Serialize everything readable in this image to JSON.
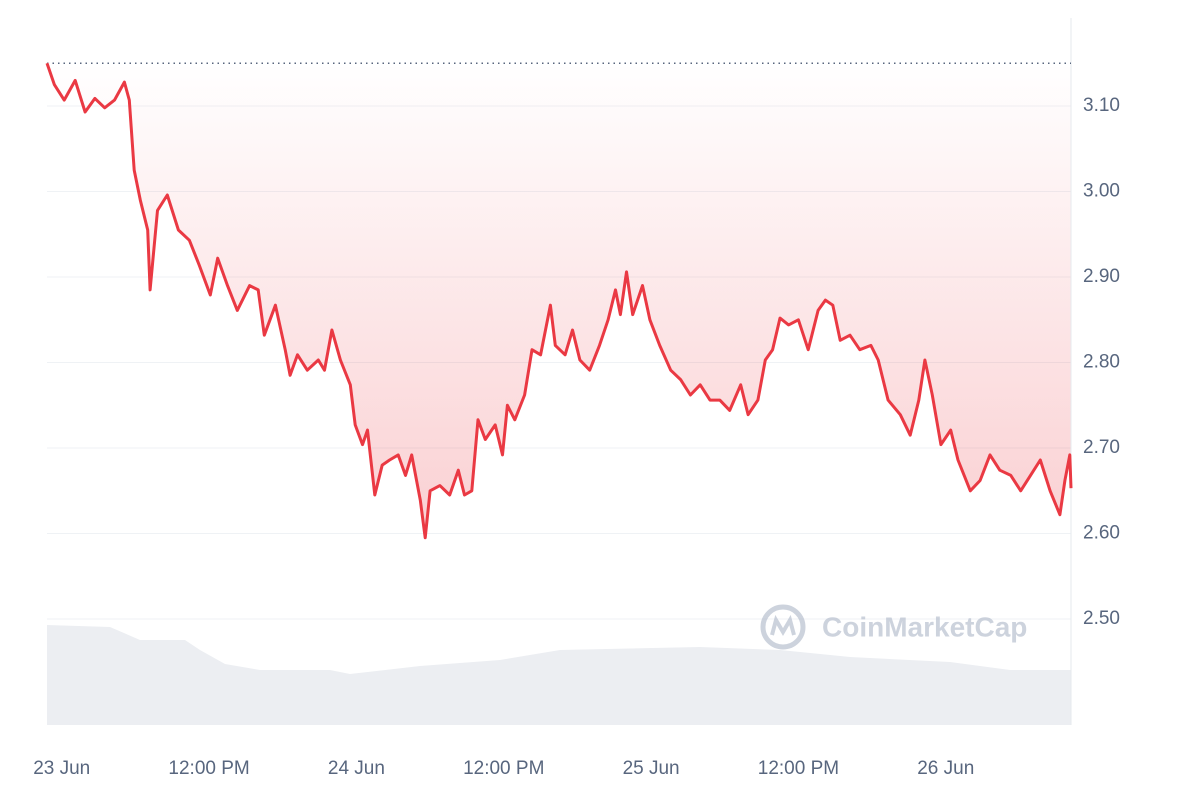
{
  "chart_data": {
    "type": "line",
    "watermark": "CoinMarketCap",
    "x": [
      -1.2,
      -0.6,
      0.2,
      1.1,
      1.9,
      2.7,
      3.5,
      4.3,
      5.1,
      5.5,
      5.9,
      6.4,
      7.0,
      7.2,
      7.8,
      8.6,
      9.5,
      10.4,
      11.2,
      12.1,
      12.7,
      13.5,
      14.3,
      15.3,
      16.0,
      16.5,
      17.4,
      18.2,
      18.6,
      19.2,
      20.0,
      20.9,
      21.4,
      22.0,
      22.7,
      23.5,
      23.9,
      24.5,
      24.9,
      25.5,
      26.1,
      26.7,
      27.4,
      28.0,
      28.5,
      29.2,
      29.6,
      30.0,
      30.8,
      31.6,
      32.3,
      32.8,
      33.4,
      33.9,
      34.5,
      35.3,
      35.9,
      36.3,
      36.9,
      37.7,
      38.3,
      39.0,
      39.8,
      40.2,
      41.0,
      41.6,
      42.2,
      43.0,
      43.8,
      44.5,
      45.1,
      45.5,
      46.0,
      46.5,
      47.3,
      47.9,
      48.7,
      49.6,
      50.4,
      51.2,
      52.0,
      52.8,
      53.6,
      54.4,
      55.3,
      55.9,
      56.7,
      57.3,
      57.9,
      58.5,
      59.2,
      60.0,
      60.8,
      61.6,
      62.2,
      62.8,
      63.4,
      64.2,
      65.0,
      65.9,
      66.5,
      67.3,
      68.3,
      69.1,
      69.8,
      70.3,
      70.9,
      71.6,
      72.4,
      73.0,
      74.0,
      74.8,
      75.6,
      76.4,
      77.3,
      78.1,
      78.9,
      79.7,
      80.5,
      81.3,
      81.7,
      82.1,
      82.2
    ],
    "series": [
      {
        "color": "#ea3943",
        "values": [
          3.15,
          3.125,
          3.107,
          3.13,
          3.093,
          3.109,
          3.098,
          3.107,
          3.128,
          3.107,
          3.025,
          2.99,
          2.955,
          2.885,
          2.978,
          2.996,
          2.955,
          2.943,
          2.914,
          2.879,
          2.922,
          2.89,
          2.861,
          2.89,
          2.885,
          2.832,
          2.867,
          2.815,
          2.785,
          2.809,
          2.791,
          2.803,
          2.791,
          2.838,
          2.803,
          2.774,
          2.727,
          2.704,
          2.721,
          2.645,
          2.68,
          2.686,
          2.692,
          2.668,
          2.692,
          2.639,
          2.595,
          2.65,
          2.656,
          2.645,
          2.674,
          2.645,
          2.65,
          2.733,
          2.71,
          2.727,
          2.692,
          2.75,
          2.733,
          2.762,
          2.815,
          2.809,
          2.867,
          2.82,
          2.809,
          2.838,
          2.803,
          2.791,
          2.82,
          2.85,
          2.885,
          2.856,
          2.906,
          2.856,
          2.89,
          2.85,
          2.82,
          2.791,
          2.78,
          2.762,
          2.774,
          2.756,
          2.756,
          2.744,
          2.774,
          2.739,
          2.756,
          2.803,
          2.815,
          2.852,
          2.844,
          2.85,
          2.815,
          2.861,
          2.873,
          2.867,
          2.826,
          2.832,
          2.815,
          2.82,
          2.803,
          2.756,
          2.739,
          2.715,
          2.756,
          2.803,
          2.762,
          2.704,
          2.721,
          2.686,
          2.65,
          2.662,
          2.692,
          2.674,
          2.668,
          2.65,
          2.668,
          2.686,
          2.65,
          2.622,
          2.662,
          2.692,
          2.653
        ]
      }
    ],
    "xlim": [
      -1.2,
      82.2
    ],
    "xticks": [
      {
        "value": 0,
        "label": "23 Jun"
      },
      {
        "value": 12,
        "label": "12:00 PM"
      },
      {
        "value": 24,
        "label": "24 Jun"
      },
      {
        "value": 36,
        "label": "12:00 PM"
      },
      {
        "value": 48,
        "label": "25 Jun"
      },
      {
        "value": 60,
        "label": "12:00 PM"
      },
      {
        "value": 72,
        "label": "26 Jun"
      }
    ],
    "ylim": [
      2.376,
      3.203
    ],
    "yticks": [
      {
        "value": 2.5,
        "label": "2.50"
      },
      {
        "value": 2.6,
        "label": "2.60"
      },
      {
        "value": 2.7,
        "label": "2.70"
      },
      {
        "value": 2.8,
        "label": "2.80"
      },
      {
        "value": 2.9,
        "label": "2.90"
      },
      {
        "value": 3.0,
        "label": "3.00"
      },
      {
        "value": 3.1,
        "label": "3.10"
      }
    ],
    "grid": true
  }
}
